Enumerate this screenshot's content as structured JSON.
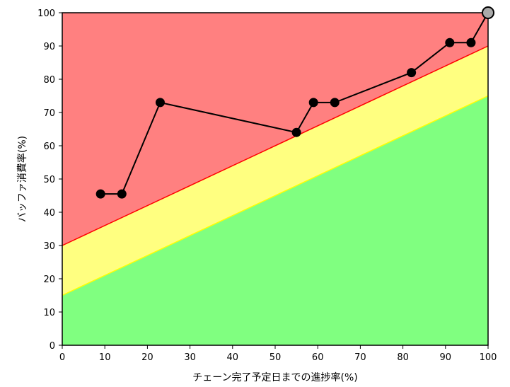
{
  "chart_data": {
    "type": "line",
    "title": "",
    "xlabel": "チェーン完了予定日までの進捗率(%)",
    "ylabel": "バッファ消費率(%)",
    "xlim": [
      0,
      100
    ],
    "ylim": [
      0,
      100
    ],
    "x_ticks": [
      "0",
      "10",
      "20",
      "30",
      "40",
      "50",
      "60",
      "70",
      "80",
      "90",
      "100"
    ],
    "y_ticks": [
      "0",
      "10",
      "20",
      "30",
      "40",
      "50",
      "60",
      "70",
      "80",
      "90",
      "100"
    ],
    "grid": false,
    "legend": "none",
    "zones": {
      "green": {
        "color": "#80ff80",
        "from_y_at_0": 0,
        "to_y_at_0": 15,
        "from_y_at_100": 0,
        "to_y_at_100": 75
      },
      "yellow": {
        "color": "#ffff80",
        "from_y_at_0": 15,
        "to_y_at_0": 30,
        "from_y_at_100": 75,
        "to_y_at_100": 90
      },
      "red": {
        "color": "#ff8080",
        "from_y_at_0": 30,
        "to_y_at_0": 100,
        "from_y_at_100": 90,
        "to_y_at_100": 100
      }
    },
    "boundary_lines": [
      {
        "color": "#ffff00",
        "y_at_0": 15,
        "y_at_100": 75
      },
      {
        "color": "#ff0000",
        "y_at_0": 30,
        "y_at_100": 90
      }
    ],
    "series": [
      {
        "color": "#000000",
        "points": [
          {
            "x": 9,
            "y": 45.5
          },
          {
            "x": 14,
            "y": 45.5
          },
          {
            "x": 23,
            "y": 73
          },
          {
            "x": 55,
            "y": 64
          },
          {
            "x": 59,
            "y": 73
          },
          {
            "x": 64,
            "y": 73
          },
          {
            "x": 82,
            "y": 82
          },
          {
            "x": 91,
            "y": 91
          },
          {
            "x": 96,
            "y": 91
          },
          {
            "x": 100,
            "y": 100
          }
        ],
        "last_point_color": "#aaaaaa"
      }
    ]
  }
}
